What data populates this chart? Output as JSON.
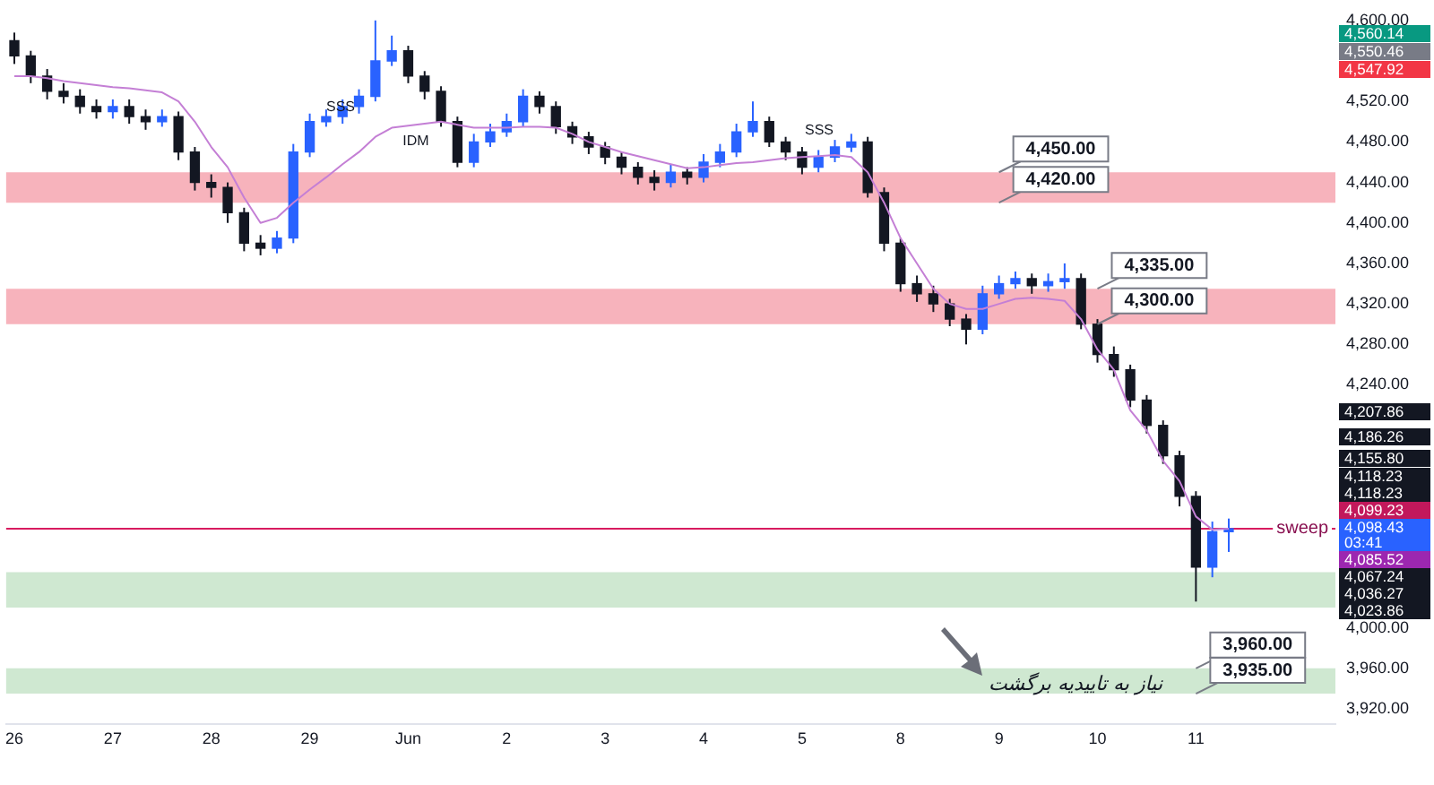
{
  "chart_data": {
    "type": "candlestick",
    "colors": [
      "#131722",
      "#131722",
      "#131722",
      "#131722",
      "#131722",
      "#131722",
      "#2962ff",
      "#131722",
      "#131722",
      "#2962ff",
      "#131722",
      "#131722",
      "#131722",
      "#131722",
      "#131722",
      "#131722",
      "#2962ff",
      "#2962ff",
      "#2962ff",
      "#2962ff",
      "#2962ff",
      "#2962ff",
      "#2962ff",
      "#2962ff",
      "#131722",
      "#131722",
      "#131722",
      "#131722",
      "#2962ff",
      "#2962ff",
      "#2962ff",
      "#2962ff",
      "#131722",
      "#131722",
      "#131722",
      "#131722",
      "#131722",
      "#131722",
      "#131722",
      "#131722",
      "#2962ff",
      "#131722",
      "#2962ff",
      "#2962ff",
      "#2962ff",
      "#2962ff",
      "#131722",
      "#131722",
      "#131722",
      "#2962ff",
      "#2962ff",
      "#2962ff",
      "#131722",
      "#131722",
      "#131722",
      "#131722",
      "#131722",
      "#131722",
      "#131722",
      "#2962ff",
      "#2962ff",
      "#2962ff",
      "#131722",
      "#2962ff",
      "#2962ff",
      "#131722",
      "#131722",
      "#131722",
      "#131722",
      "#131722",
      "#131722",
      "#131722",
      "#131722",
      "#2962ff",
      "#2962ff",
      null,
      null,
      null,
      null,
      null,
      null
    ],
    "categories": [
      "26",
      null,
      null,
      null,
      null,
      null,
      "27",
      null,
      null,
      null,
      null,
      null,
      "28",
      null,
      null,
      null,
      null,
      null,
      "29",
      null,
      null,
      null,
      null,
      null,
      "Jun",
      null,
      null,
      null,
      null,
      null,
      "2",
      null,
      null,
      null,
      null,
      null,
      "3",
      null,
      null,
      null,
      null,
      null,
      "4",
      null,
      null,
      null,
      null,
      null,
      "5",
      null,
      null,
      null,
      null,
      null,
      "8",
      null,
      null,
      null,
      null,
      null,
      "9",
      null,
      null,
      null,
      null,
      null,
      "10",
      null,
      null,
      null,
      null,
      null,
      "11",
      null,
      null,
      null,
      null,
      null,
      null,
      null,
      null
    ],
    "ohlc": [
      [
        4580,
        4588,
        4557,
        4565
      ],
      [
        4565,
        4570,
        4538,
        4545
      ],
      [
        4545,
        4552,
        4522,
        4530
      ],
      [
        4530,
        4538,
        4518,
        4525
      ],
      [
        4525,
        4532,
        4508,
        4515
      ],
      [
        4515,
        4522,
        4503,
        4510
      ],
      [
        4510,
        4522,
        4503,
        4515
      ],
      [
        4515,
        4522,
        4498,
        4505
      ],
      [
        4505,
        4512,
        4492,
        4500
      ],
      [
        4500,
        4512,
        4495,
        4505
      ],
      [
        4505,
        4510,
        4462,
        4470
      ],
      [
        4470,
        4475,
        4432,
        4440
      ],
      [
        4440,
        4448,
        4425,
        4435
      ],
      [
        4435,
        4440,
        4400,
        4410
      ],
      [
        4410,
        4415,
        4372,
        4380
      ],
      [
        4380,
        4388,
        4368,
        4375
      ],
      [
        4375,
        4392,
        4370,
        4385
      ],
      [
        4385,
        4478,
        4380,
        4470
      ],
      [
        4470,
        4508,
        4465,
        4500
      ],
      [
        4500,
        4512,
        4495,
        4505
      ],
      [
        4505,
        4522,
        4498,
        4515
      ],
      [
        4515,
        4532,
        4508,
        4525
      ],
      [
        4525,
        4600,
        4520,
        4560
      ],
      [
        4560,
        4585,
        4555,
        4570
      ],
      [
        4570,
        4575,
        4538,
        4545
      ],
      [
        4545,
        4550,
        4522,
        4530
      ],
      [
        4530,
        4535,
        4495,
        4500
      ],
      [
        4500,
        4505,
        4455,
        4460
      ],
      [
        4460,
        4488,
        4455,
        4480
      ],
      [
        4480,
        4498,
        4475,
        4490
      ],
      [
        4490,
        4508,
        4485,
        4500
      ],
      [
        4500,
        4532,
        4495,
        4525
      ],
      [
        4525,
        4530,
        4508,
        4515
      ],
      [
        4515,
        4520,
        4488,
        4495
      ],
      [
        4495,
        4500,
        4478,
        4485
      ],
      [
        4485,
        4490,
        4468,
        4475
      ],
      [
        4475,
        4480,
        4458,
        4465
      ],
      [
        4465,
        4470,
        4448,
        4455
      ],
      [
        4455,
        4460,
        4438,
        4445
      ],
      [
        4445,
        4452,
        4432,
        4440
      ],
      [
        4440,
        4458,
        4435,
        4450
      ],
      [
        4450,
        4455,
        4438,
        4445
      ],
      [
        4445,
        4468,
        4440,
        4460
      ],
      [
        4460,
        4478,
        4455,
        4470
      ],
      [
        4470,
        4498,
        4465,
        4490
      ],
      [
        4490,
        4520,
        4485,
        4500
      ],
      [
        4500,
        4505,
        4475,
        4480
      ],
      [
        4480,
        4485,
        4462,
        4470
      ],
      [
        4470,
        4475,
        4448,
        4455
      ],
      [
        4455,
        4472,
        4450,
        4465
      ],
      [
        4465,
        4482,
        4460,
        4475
      ],
      [
        4475,
        4488,
        4470,
        4480
      ],
      [
        4480,
        4485,
        4425,
        4430
      ],
      [
        4430,
        4435,
        4372,
        4380
      ],
      [
        4380,
        4385,
        4332,
        4340
      ],
      [
        4340,
        4348,
        4322,
        4330
      ],
      [
        4330,
        4338,
        4312,
        4320
      ],
      [
        4320,
        4325,
        4298,
        4305
      ],
      [
        4305,
        4310,
        4280,
        4295
      ],
      [
        4295,
        4338,
        4290,
        4330
      ],
      [
        4330,
        4348,
        4325,
        4340
      ],
      [
        4340,
        4352,
        4335,
        4345
      ],
      [
        4345,
        4350,
        4330,
        4338
      ],
      [
        4338,
        4350,
        4332,
        4342
      ],
      [
        4342,
        4360,
        4335,
        4345
      ],
      [
        4345,
        4350,
        4295,
        4300
      ],
      [
        4300,
        4305,
        4262,
        4270
      ],
      [
        4270,
        4278,
        4248,
        4255
      ],
      [
        4255,
        4260,
        4218,
        4225
      ],
      [
        4225,
        4230,
        4192,
        4200
      ],
      [
        4200,
        4205,
        4162,
        4170
      ],
      [
        4170,
        4175,
        4120,
        4130
      ],
      [
        4130,
        4135,
        4026,
        4060
      ],
      [
        4060,
        4105,
        4050,
        4095
      ],
      [
        4095,
        4108,
        4075,
        4098
      ],
      null,
      null,
      null,
      null,
      null,
      null
    ],
    "series": [
      {
        "type": "line",
        "color": "#c47fd5",
        "values": [
          4545,
          4545,
          4543,
          4540,
          4538,
          4536,
          4534,
          4533,
          4531,
          4529,
          4520,
          4500,
          4475,
          4455,
          4425,
          4400,
          4405,
          4420,
          4433,
          4445,
          4458,
          4470,
          4485,
          4494,
          4496,
          4498,
          4500,
          4497,
          4494,
          4494,
          4494,
          4495,
          4495,
          4494,
          4488,
          4480,
          4475,
          4470,
          4466,
          4462,
          4458,
          4454,
          4455,
          4457,
          4459,
          4460,
          4462,
          4464,
          4465,
          4466,
          4467,
          4465,
          4450,
          4420,
          4385,
          4360,
          4335,
          4320,
          4315,
          4315,
          4320,
          4325,
          4326,
          4325,
          4323,
          4305,
          4275,
          4255,
          4215,
          4195,
          4165,
          4145,
          4110,
          4097,
          4098,
          null,
          null,
          null,
          null,
          null,
          null
        ]
      }
    ],
    "ylim": [
      3905,
      4600
    ],
    "yticks": [
      {
        "value": 3920,
        "label": "3,920.00"
      },
      {
        "value": 3960,
        "label": "3,960.00"
      },
      {
        "value": 4000,
        "label": "4,000.00"
      },
      {
        "value": 4240,
        "label": "4,240.00"
      },
      {
        "value": 4280,
        "label": "4,280.00"
      },
      {
        "value": 4320,
        "label": "4,320.00"
      },
      {
        "value": 4360,
        "label": "4,360.00"
      },
      {
        "value": 4400,
        "label": "4,400.00"
      },
      {
        "value": 4440,
        "label": "4,440.00"
      },
      {
        "value": 4480,
        "label": "4,480.00"
      },
      {
        "value": 4520,
        "label": "4,520.00"
      },
      {
        "value": 4600,
        "label": "4,600.00"
      }
    ],
    "bands": [
      {
        "axis": "y",
        "from": 4420,
        "to": 4450,
        "color": "#f7b3bc"
      },
      {
        "axis": "y",
        "from": 4300,
        "to": 4335,
        "color": "#f7b3bc"
      },
      {
        "axis": "y",
        "from": 4020,
        "to": 4055,
        "color": "#cfe8d1"
      },
      {
        "axis": "y",
        "from": 3935,
        "to": 3960,
        "color": "#cfe8d1"
      }
    ],
    "ref_lines": [
      {
        "axis": "y",
        "value": 4098,
        "label": "sweep",
        "color": "#d81b60"
      }
    ],
    "annotations": [
      "SSS",
      "IDM",
      "SSS",
      {
        "text": "4,450.00",
        "x": "9",
        "y": 4450
      },
      {
        "text": "4,420.00",
        "x": "9",
        "y": 4420
      },
      {
        "text": "4,335.00",
        "x": "10",
        "y": 4335
      },
      {
        "text": "4,300.00",
        "x": "10",
        "y": 4300
      },
      {
        "text": "3,960.00",
        "x": "11",
        "y": 3960
      },
      {
        "text": "3,935.00",
        "x": "11",
        "y": 3935
      },
      "نیاز به تاییدیه برگشت",
      "4,560.14",
      "4,550.46",
      "4,547.92",
      "4,207.86",
      "4,186.26",
      "4,155.80",
      "4,118.23",
      "4,118.23",
      "4,099.23",
      "4,098.43",
      "03:41",
      "4,085.52",
      "4,067.24",
      "4,036.27",
      "4,023.86"
    ]
  }
}
